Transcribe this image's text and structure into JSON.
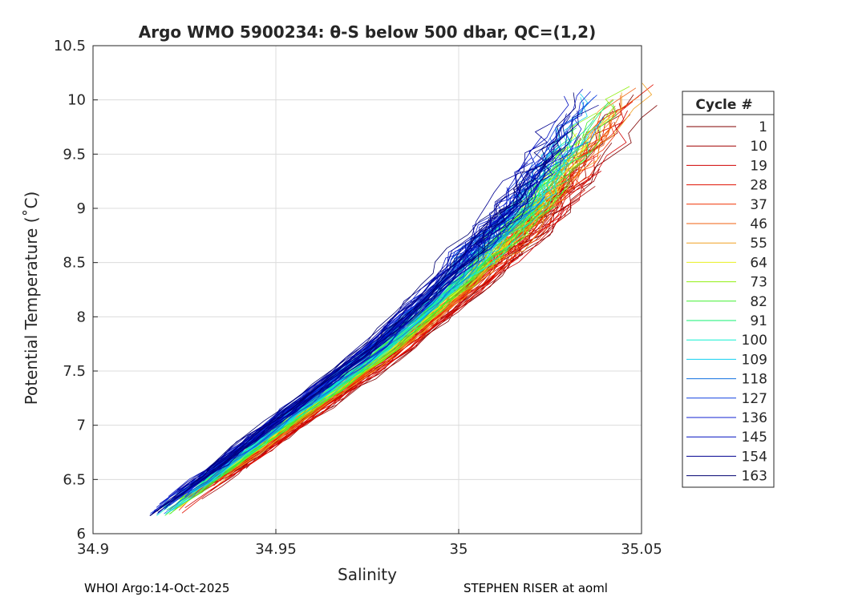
{
  "chart_data": {
    "type": "line",
    "title": "Argo WMO 5900234: θ-S below 500 dbar,  QC=(1,2)",
    "xlabel": "Salinity",
    "ylabel": "Potential Temperature (˚C)",
    "xlim": [
      34.9,
      35.05
    ],
    "ylim": [
      6,
      10.5
    ],
    "xticks": [
      "34.9",
      "34.95",
      "35",
      "35.05"
    ],
    "yticks": [
      "6",
      "6.5",
      "7",
      "7.5",
      "8",
      "8.5",
      "9",
      "9.5",
      "10",
      "10.5"
    ],
    "grid": true,
    "legend_title": "Cycle #",
    "legend_position": "right",
    "legend": [
      {
        "name": "1",
        "color": "#800000"
      },
      {
        "name": "10",
        "color": "#a00000"
      },
      {
        "name": "19",
        "color": "#d00000"
      },
      {
        "name": "28",
        "color": "#e01000"
      },
      {
        "name": "37",
        "color": "#f03000"
      },
      {
        "name": "46",
        "color": "#f06010"
      },
      {
        "name": "55",
        "color": "#f0a020"
      },
      {
        "name": "64",
        "color": "#e8f020"
      },
      {
        "name": "73",
        "color": "#90f010"
      },
      {
        "name": "82",
        "color": "#40f030"
      },
      {
        "name": "91",
        "color": "#10f070"
      },
      {
        "name": "100",
        "color": "#10f0d0"
      },
      {
        "name": "109",
        "color": "#10d0f0"
      },
      {
        "name": "118",
        "color": "#1070e0"
      },
      {
        "name": "127",
        "color": "#1040e0"
      },
      {
        "name": "136",
        "color": "#1020d0"
      },
      {
        "name": "145",
        "color": "#0010c0"
      },
      {
        "name": "154",
        "color": "#000090"
      },
      {
        "name": "163",
        "color": "#000070"
      }
    ],
    "mean_profile": {
      "salinity": [
        34.918,
        34.95,
        34.98,
        35.0,
        35.02,
        35.035
      ],
      "theta": [
        6.15,
        6.95,
        7.7,
        8.3,
        9.0,
        9.7
      ]
    }
  },
  "footer": {
    "left": "WHOI Argo:14-Oct-2025",
    "right": "STEPHEN RISER at aoml"
  }
}
